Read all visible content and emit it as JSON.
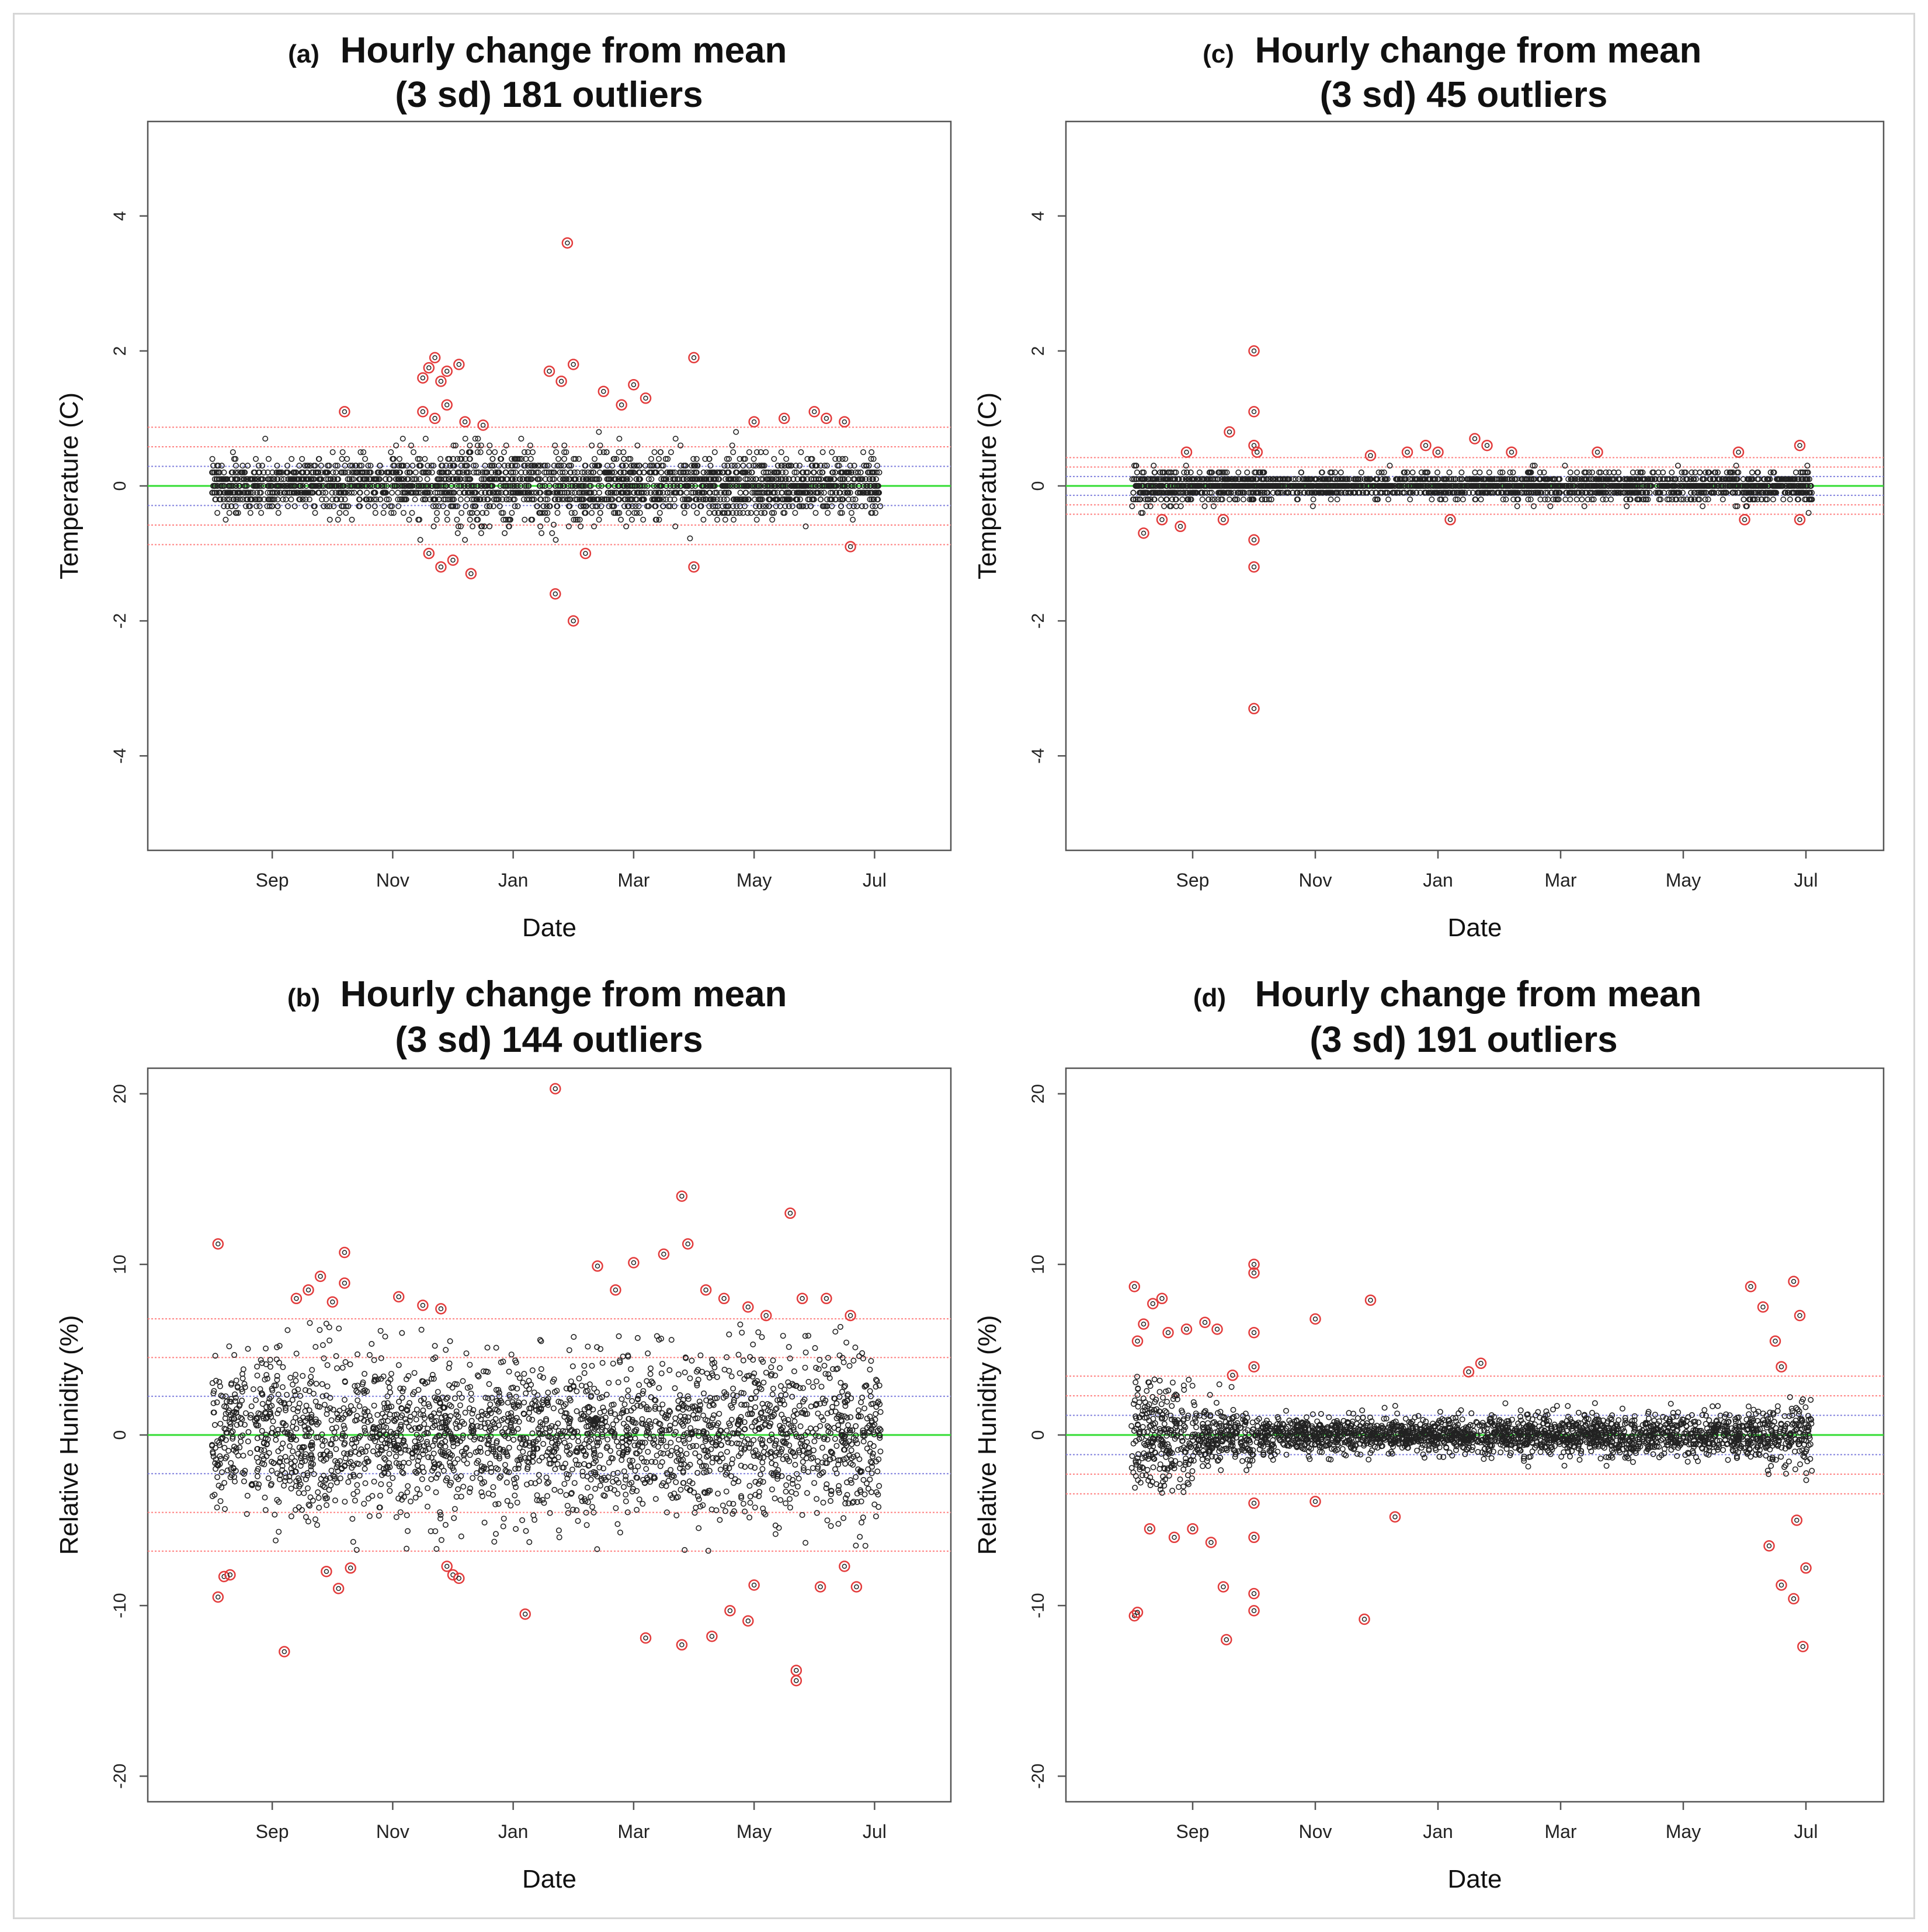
{
  "colors": {
    "points": "#222222",
    "outliers": "#e33b3b",
    "mean_line": "#33dd33",
    "sd1_line": "#8080dd",
    "sd_red_line": "#ff8080",
    "frame": "#555555",
    "border": "#d6d6d6"
  },
  "x_months": [
    "Sep",
    "Nov",
    "Jan",
    "Mar",
    "May",
    "Jul"
  ],
  "chart_data": [
    {
      "id": "a",
      "type": "scatter",
      "panel_label": "(a)",
      "title_line1": "Hourly change from mean",
      "title_line2": "(3 sd) 181 outliers",
      "xlabel": "Date",
      "ylabel": "Temperature (C)",
      "ylim": [
        -5.4,
        5.4
      ],
      "yticks": [
        -4,
        -2,
        0,
        2,
        4
      ],
      "ytick_labels": [
        "-4",
        "-2",
        "0",
        "2",
        "4"
      ],
      "xtick_labels": [
        "Sep",
        "Nov",
        "Jan",
        "Mar",
        "May",
        "Jul"
      ],
      "sd": 0.29,
      "sd_lines": [
        1,
        2,
        3
      ],
      "outlier_count": 181,
      "outliers_sample": [
        [
          3.5,
          1.6
        ],
        [
          3.6,
          1.75
        ],
        [
          3.7,
          1.9
        ],
        [
          3.8,
          1.55
        ],
        [
          3.9,
          1.7
        ],
        [
          4.1,
          1.8
        ],
        [
          3.5,
          1.1
        ],
        [
          3.7,
          1.0
        ],
        [
          3.9,
          1.2
        ],
        [
          4.2,
          0.95
        ],
        [
          4.5,
          0.9
        ],
        [
          3.6,
          -1.0
        ],
        [
          3.8,
          -1.2
        ],
        [
          4.0,
          -1.1
        ],
        [
          4.3,
          -1.3
        ],
        [
          5.6,
          1.7
        ],
        [
          5.8,
          1.55
        ],
        [
          6.0,
          1.8
        ],
        [
          5.9,
          3.6
        ],
        [
          5.7,
          -1.6
        ],
        [
          6.0,
          -2.0
        ],
        [
          6.2,
          -1.0
        ],
        [
          6.5,
          1.4
        ],
        [
          6.8,
          1.2
        ],
        [
          7.0,
          1.5
        ],
        [
          7.2,
          1.3
        ],
        [
          8.0,
          1.9
        ],
        [
          8.0,
          -1.2
        ],
        [
          9.0,
          0.95
        ],
        [
          9.5,
          1.0
        ],
        [
          10.0,
          1.1
        ],
        [
          10.2,
          1.0
        ],
        [
          10.5,
          0.95
        ],
        [
          10.6,
          -0.9
        ],
        [
          2.2,
          1.1
        ]
      ],
      "bulk_sd_by_month": [
        0.17,
        0.17,
        0.2,
        0.25,
        0.3,
        0.28,
        0.26,
        0.22,
        0.22,
        0.2,
        0.2,
        0.2
      ]
    },
    {
      "id": "c",
      "type": "scatter",
      "panel_label": "(c)",
      "title_line1": "Hourly change from mean",
      "title_line2": "(3 sd) 45 outliers",
      "xlabel": "Date",
      "ylabel": "Temperature (C)",
      "ylim": [
        -5.4,
        5.4
      ],
      "yticks": [
        -4,
        -2,
        0,
        2,
        4
      ],
      "ytick_labels": [
        "-4",
        "-2",
        "0",
        "2",
        "4"
      ],
      "xtick_labels": [
        "Sep",
        "Nov",
        "Jan",
        "Mar",
        "May",
        "Jul"
      ],
      "sd": 0.14,
      "sd_lines": [
        1,
        2,
        3
      ],
      "outlier_count": 45,
      "outliers_sample": [
        [
          2.0,
          2.0
        ],
        [
          2.0,
          1.1
        ],
        [
          2.0,
          0.6
        ],
        [
          2.0,
          -0.8
        ],
        [
          2.0,
          -1.2
        ],
        [
          2.0,
          -3.3
        ],
        [
          2.05,
          0.5
        ],
        [
          0.2,
          -0.7
        ],
        [
          0.5,
          -0.5
        ],
        [
          0.8,
          -0.6
        ],
        [
          0.9,
          0.5
        ],
        [
          1.6,
          0.8
        ],
        [
          1.5,
          -0.5
        ],
        [
          4.8,
          0.6
        ],
        [
          5.0,
          0.5
        ],
        [
          5.6,
          0.7
        ],
        [
          5.8,
          0.6
        ],
        [
          6.2,
          0.5
        ],
        [
          4.5,
          0.5
        ],
        [
          3.9,
          0.45
        ],
        [
          7.6,
          0.5
        ],
        [
          5.2,
          -0.5
        ],
        [
          9.9,
          0.5
        ],
        [
          10.9,
          0.6
        ],
        [
          10.9,
          -0.5
        ],
        [
          10.0,
          -0.5
        ]
      ],
      "bulk_sd_by_month": [
        0.12,
        0.1,
        0.09,
        0.08,
        0.08,
        0.09,
        0.09,
        0.1,
        0.1,
        0.1,
        0.11,
        0.12
      ]
    },
    {
      "id": "b",
      "type": "scatter",
      "panel_label": "(b)",
      "title_line1": "Hourly change from mean",
      "title_line2": "(3 sd) 144 outliers",
      "xlabel": "Date",
      "ylabel": "Relative Hunidity (%)",
      "ylim": [
        -21.5,
        21.5
      ],
      "yticks": [
        -20,
        -10,
        0,
        10,
        20
      ],
      "ytick_labels": [
        "-20",
        "-10",
        "0",
        "10",
        "20"
      ],
      "xtick_labels": [
        "Sep",
        "Nov",
        "Jan",
        "Mar",
        "May",
        "Jul"
      ],
      "sd": 2.27,
      "sd_lines": [
        1,
        2,
        3
      ],
      "outlier_count": 144,
      "outliers_sample": [
        [
          0.1,
          11.2
        ],
        [
          0.1,
          -9.5
        ],
        [
          0.2,
          -8.3
        ],
        [
          0.3,
          -8.2
        ],
        [
          1.2,
          -12.7
        ],
        [
          1.4,
          8.0
        ],
        [
          1.6,
          8.5
        ],
        [
          1.8,
          9.3
        ],
        [
          2.0,
          7.8
        ],
        [
          2.2,
          10.7
        ],
        [
          2.2,
          8.9
        ],
        [
          1.9,
          -8.0
        ],
        [
          2.1,
          -9.0
        ],
        [
          2.3,
          -7.8
        ],
        [
          3.1,
          8.1
        ],
        [
          3.5,
          7.6
        ],
        [
          3.8,
          7.4
        ],
        [
          3.9,
          -7.7
        ],
        [
          4.0,
          -8.2
        ],
        [
          4.1,
          -8.4
        ],
        [
          5.2,
          -10.5
        ],
        [
          5.7,
          20.3
        ],
        [
          6.4,
          9.9
        ],
        [
          6.7,
          8.5
        ],
        [
          7.0,
          10.1
        ],
        [
          7.5,
          10.6
        ],
        [
          7.8,
          14.0
        ],
        [
          7.9,
          11.2
        ],
        [
          8.2,
          8.5
        ],
        [
          8.5,
          8.0
        ],
        [
          8.9,
          7.5
        ],
        [
          9.2,
          7.0
        ],
        [
          9.6,
          13.0
        ],
        [
          9.8,
          8.0
        ],
        [
          10.2,
          8.0
        ],
        [
          10.6,
          7.0
        ],
        [
          7.2,
          -11.9
        ],
        [
          7.8,
          -12.3
        ],
        [
          8.3,
          -11.8
        ],
        [
          8.6,
          -10.3
        ],
        [
          8.9,
          -10.9
        ],
        [
          9.7,
          -13.8
        ],
        [
          9.7,
          -14.4
        ],
        [
          9.0,
          -8.8
        ],
        [
          10.1,
          -8.9
        ],
        [
          10.5,
          -7.7
        ],
        [
          10.7,
          -8.9
        ]
      ],
      "bulk_sd_by_month": [
        2.3,
        2.4,
        2.3,
        2.2,
        2.2,
        2.3,
        2.4,
        2.4,
        2.5,
        2.6,
        2.6,
        2.5
      ]
    },
    {
      "id": "d",
      "type": "scatter",
      "panel_label": "(d)",
      "title_line1": "Hourly change from mean",
      "title_line2": "(3 sd) 191 outliers",
      "xlabel": "Date",
      "ylabel": "Relative Hunidity (%)",
      "ylim": [
        -21.5,
        21.5
      ],
      "yticks": [
        -20,
        -10,
        0,
        10,
        20
      ],
      "ytick_labels": [
        "-20",
        "-10",
        "0",
        "10",
        "20"
      ],
      "xtick_labels": [
        "Sep",
        "Nov",
        "Jan",
        "Mar",
        "May",
        "Jul"
      ],
      "sd": 1.15,
      "sd_lines": [
        1,
        2,
        3
      ],
      "outlier_count": 191,
      "outliers_sample": [
        [
          0.05,
          8.7
        ],
        [
          0.05,
          -10.6
        ],
        [
          0.1,
          -10.4
        ],
        [
          0.1,
          5.5
        ],
        [
          0.2,
          6.5
        ],
        [
          0.35,
          7.7
        ],
        [
          0.5,
          8.0
        ],
        [
          0.6,
          6.0
        ],
        [
          0.9,
          6.2
        ],
        [
          1.2,
          6.6
        ],
        [
          1.4,
          6.2
        ],
        [
          1.5,
          -8.9
        ],
        [
          1.55,
          -12.0
        ],
        [
          1.65,
          3.5
        ],
        [
          0.3,
          -5.5
        ],
        [
          0.7,
          -6.0
        ],
        [
          1.0,
          -5.5
        ],
        [
          1.3,
          -6.3
        ],
        [
          2.0,
          10.0
        ],
        [
          2.0,
          9.5
        ],
        [
          2.0,
          6.0
        ],
        [
          2.0,
          4.0
        ],
        [
          2.0,
          -4.0
        ],
        [
          2.0,
          -6.0
        ],
        [
          2.0,
          -9.3
        ],
        [
          2.0,
          -10.3
        ],
        [
          3.0,
          6.8
        ],
        [
          3.9,
          7.9
        ],
        [
          3.8,
          -10.8
        ],
        [
          4.3,
          -4.8
        ],
        [
          5.5,
          3.7
        ],
        [
          5.7,
          4.2
        ],
        [
          3.0,
          -3.9
        ],
        [
          10.1,
          8.7
        ],
        [
          10.3,
          7.5
        ],
        [
          10.5,
          5.5
        ],
        [
          10.6,
          4.0
        ],
        [
          10.8,
          9.0
        ],
        [
          10.9,
          7.0
        ],
        [
          10.4,
          -6.5
        ],
        [
          10.6,
          -8.8
        ],
        [
          10.8,
          -9.6
        ],
        [
          10.95,
          -12.4
        ],
        [
          11.0,
          -7.8
        ],
        [
          10.85,
          -5.0
        ]
      ],
      "bulk_sd_by_month": [
        1.9,
        0.9,
        0.55,
        0.5,
        0.5,
        0.55,
        0.6,
        0.6,
        0.6,
        0.6,
        0.8,
        1.3
      ]
    }
  ]
}
